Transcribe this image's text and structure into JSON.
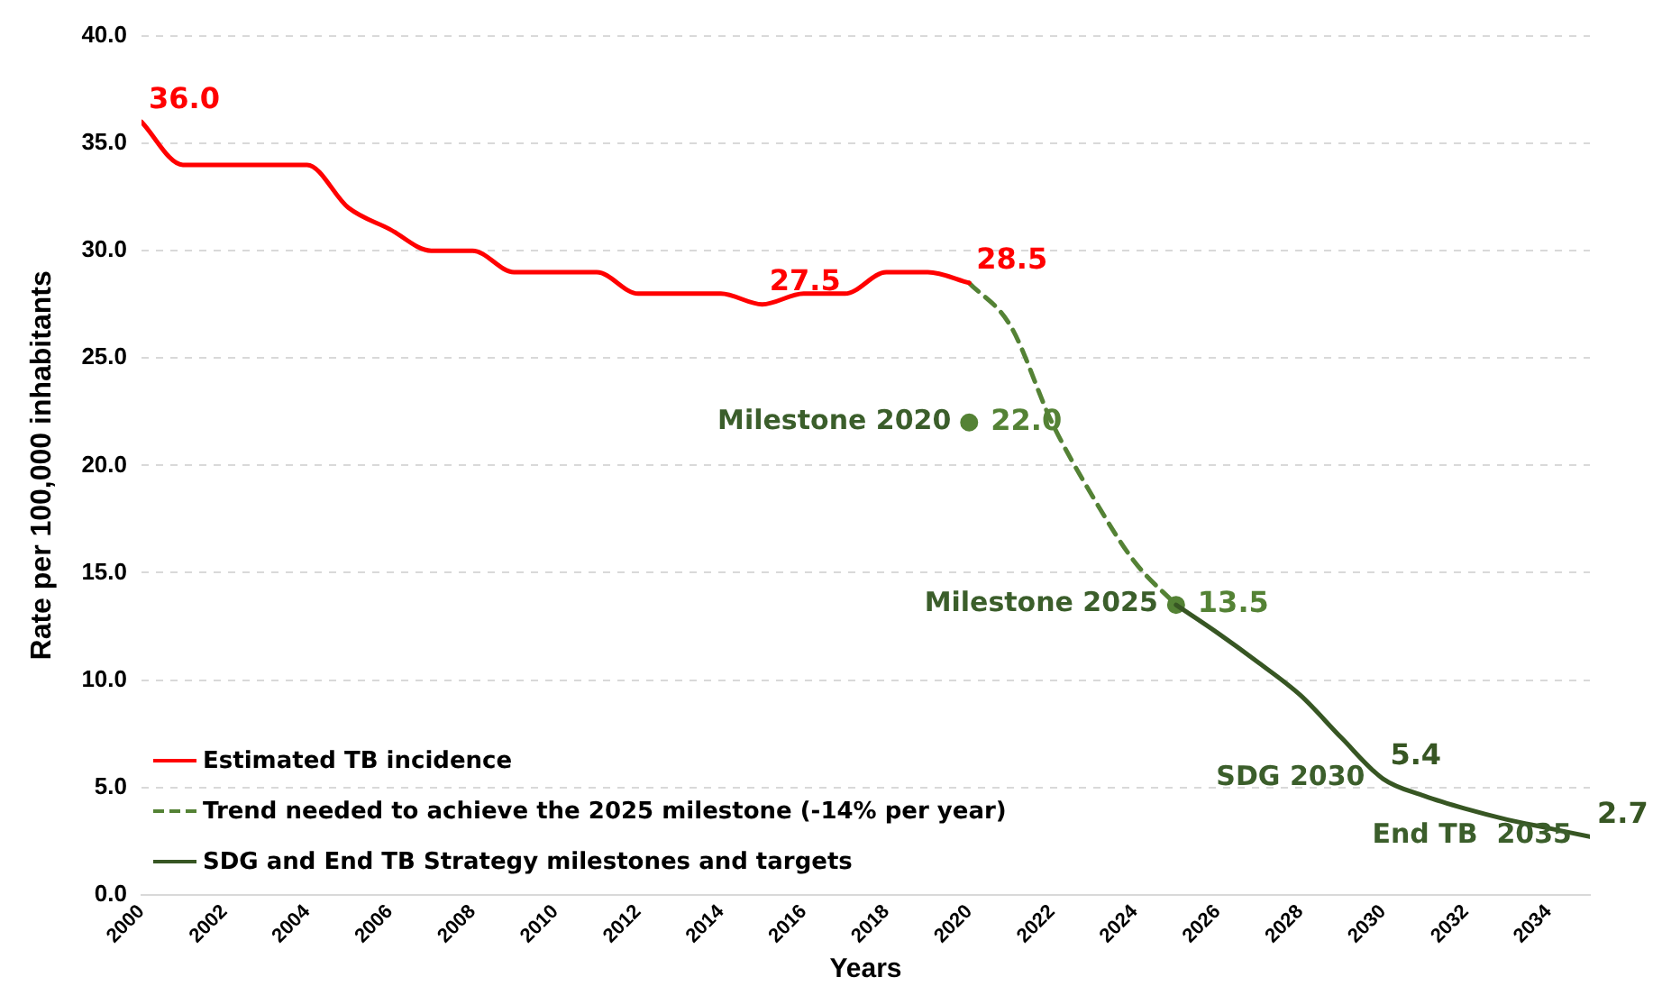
{
  "chart_data": {
    "type": "line",
    "xlabel": "Years",
    "ylabel": "Rate per 100,000 inhabitants",
    "xlim": [
      2000,
      2035
    ],
    "xticks": [
      2000,
      2002,
      2004,
      2006,
      2008,
      2010,
      2012,
      2014,
      2016,
      2018,
      2020,
      2022,
      2024,
      2026,
      2028,
      2030,
      2032,
      2034
    ],
    "ylim": [
      0,
      40
    ],
    "yticks": [
      {
        "value": 0,
        "label": "0.0"
      },
      {
        "value": 5,
        "label": "5.0"
      },
      {
        "value": 10,
        "label": "10.0"
      },
      {
        "value": 15,
        "label": "15.0"
      },
      {
        "value": 20,
        "label": "20.0"
      },
      {
        "value": 25,
        "label": "25.0"
      },
      {
        "value": 30,
        "label": "30.0"
      },
      {
        "value": 35,
        "label": "35.0"
      },
      {
        "value": 40,
        "label": "40.0"
      }
    ],
    "grid": "y",
    "legend": "bottom left",
    "series": [
      {
        "name": "Estimated TB incidence",
        "color": "#ff0000",
        "line_style": "solid",
        "marker": "none",
        "x": [
          2000,
          2001,
          2002,
          2003,
          2004,
          2005,
          2006,
          2007,
          2008,
          2009,
          2010,
          2011,
          2012,
          2013,
          2014,
          2015,
          2016,
          2017,
          2018,
          2019,
          2020
        ],
        "values": [
          36.0,
          34.0,
          34.0,
          34.0,
          34.0,
          32.0,
          31.0,
          30.0,
          30.0,
          29.0,
          29.0,
          29.0,
          28.0,
          28.0,
          28.0,
          27.5,
          28.0,
          28.0,
          29.0,
          29.0,
          28.5
        ],
        "value_labels": [
          "36.0",
          null,
          null,
          null,
          null,
          null,
          null,
          null,
          null,
          null,
          null,
          null,
          null,
          null,
          null,
          "27.5",
          null,
          null,
          null,
          null,
          "28.5"
        ]
      },
      {
        "name": "Trend needed to achieve the 2025 milestone (-14% per year)",
        "color": "#548235",
        "line_style": "dashed",
        "marker": "none",
        "x": [
          2020,
          2021,
          2022,
          2023,
          2024,
          2025
        ],
        "values": [
          28.5,
          26.5,
          22.0,
          18.5,
          15.5,
          13.5
        ]
      },
      {
        "name": "SDG and End TB Strategy milestones and targets",
        "color": "#375623",
        "line_style": "solid",
        "marker": "none",
        "x": [
          2025,
          2026,
          2027,
          2028,
          2029,
          2030,
          2031,
          2032,
          2033,
          2034,
          2035
        ],
        "values": [
          13.5,
          12.2,
          10.8,
          9.3,
          7.3,
          5.4,
          4.6,
          4.0,
          3.5,
          3.1,
          2.7
        ],
        "value_labels": [
          null,
          null,
          null,
          null,
          null,
          "5.4",
          null,
          null,
          null,
          null,
          "2.7"
        ]
      },
      {
        "type": "scatter",
        "color": "#548235",
        "marker": "circle",
        "x": [
          2020,
          2025
        ],
        "values": [
          22.0,
          13.5
        ],
        "value_labels": [
          "22.0",
          "13.5"
        ]
      }
    ],
    "annotations": [
      {
        "text": "Milestone 2020",
        "x": 2020,
        "y": 22.0
      },
      {
        "text": "Milestone 2025",
        "x": 2025,
        "y": 13.5
      },
      {
        "text": "SDG 2030",
        "x": 2030,
        "y": 5.4
      },
      {
        "text": "End TB  2035",
        "x": 2035,
        "y": 2.7
      }
    ]
  }
}
